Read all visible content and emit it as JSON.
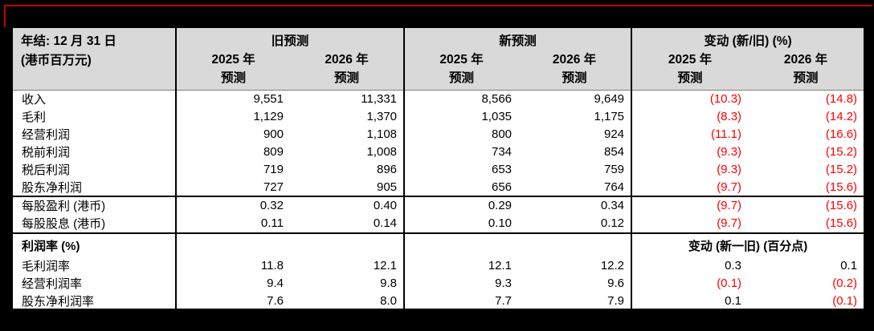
{
  "page": {
    "background": "#000000"
  },
  "annotation": {
    "color": "#c00000"
  },
  "table": {
    "corner": {
      "line1": "年结: 12 月 31 日",
      "line2": "(港币百万元)"
    },
    "groups": [
      {
        "title": "旧预测"
      },
      {
        "title": "新预测"
      },
      {
        "title": "变动 (新/旧) (%)"
      }
    ],
    "subcols": [
      {
        "year": "2025 年",
        "label": "预测"
      },
      {
        "year": "2026 年",
        "label": "预测"
      },
      {
        "year": "2025 年",
        "label": "预测"
      },
      {
        "year": "2026 年",
        "label": "预测"
      },
      {
        "year": "2025 年",
        "label": "预测"
      },
      {
        "year": "2026 年",
        "label": "预测"
      }
    ],
    "colors": {
      "negative_text": "#ff0000",
      "header_bg": "#d9d9d9",
      "border": "#000000"
    },
    "rows": [
      {
        "type": "data",
        "label": "收入",
        "values": [
          "9,551",
          "11,331",
          "8,566",
          "9,649",
          "(10.3)",
          "(14.8)"
        ]
      },
      {
        "type": "data",
        "label": "毛利",
        "values": [
          "1,129",
          "1,370",
          "1,035",
          "1,175",
          "(8.3)",
          "(14.2)"
        ]
      },
      {
        "type": "data",
        "label": "经营利润",
        "values": [
          "900",
          "1,108",
          "800",
          "924",
          "(11.1)",
          "(16.6)"
        ]
      },
      {
        "type": "data",
        "label": "税前利润",
        "values": [
          "809",
          "1,008",
          "734",
          "854",
          "(9.3)",
          "(15.2)"
        ]
      },
      {
        "type": "data",
        "label": "税后利润",
        "values": [
          "719",
          "896",
          "653",
          "759",
          "(9.3)",
          "(15.2)"
        ]
      },
      {
        "type": "data",
        "label": "股东净利润",
        "values": [
          "727",
          "905",
          "656",
          "764",
          "(9.7)",
          "(15.6)"
        ],
        "section_end": true
      },
      {
        "type": "data",
        "label": "每股盈利 (港币)",
        "values": [
          "0.32",
          "0.40",
          "0.29",
          "0.34",
          "(9.7)",
          "(15.6)"
        ],
        "tall": true
      },
      {
        "type": "data",
        "label": "每股股息 (港币)",
        "values": [
          "0.11",
          "0.14",
          "0.10",
          "0.12",
          "(9.7)",
          "(15.6)"
        ],
        "tall": true,
        "section_end": true
      },
      {
        "type": "section",
        "label": "利润率 (%)",
        "note": "变动 (新一旧) (百分点)"
      },
      {
        "type": "data",
        "label": "毛利润率",
        "values": [
          "11.8",
          "12.1",
          "12.1",
          "12.2",
          "0.3",
          "0.1"
        ]
      },
      {
        "type": "data",
        "label": "经营利润率",
        "values": [
          "9.4",
          "9.8",
          "9.3",
          "9.6",
          "(0.1)",
          "(0.2)"
        ]
      },
      {
        "type": "data",
        "label": "股东净利润率",
        "values": [
          "7.6",
          "8.0",
          "7.7",
          "7.9",
          "0.1",
          "(0.1)"
        ]
      }
    ]
  }
}
